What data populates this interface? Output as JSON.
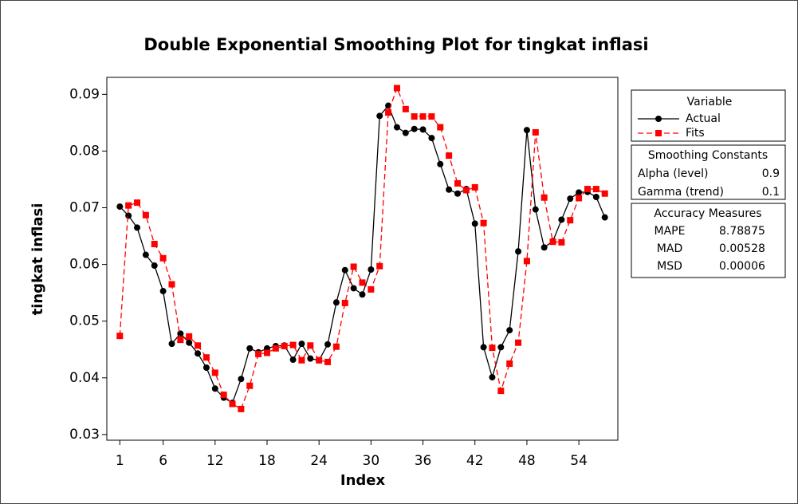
{
  "chart_data": {
    "type": "line",
    "title": "Double Exponential Smoothing Plot for tingkat inflasi",
    "x_label": "Index",
    "y_label": "tingkat inflasi",
    "x": [
      1,
      2,
      3,
      4,
      5,
      6,
      7,
      8,
      9,
      10,
      11,
      12,
      13,
      14,
      15,
      16,
      17,
      18,
      19,
      20,
      21,
      22,
      23,
      24,
      25,
      26,
      27,
      28,
      29,
      30,
      31,
      32,
      33,
      34,
      35,
      36,
      37,
      38,
      39,
      40,
      41,
      42,
      43,
      44,
      45,
      46,
      47,
      48,
      49,
      50,
      51,
      52,
      53,
      54,
      55,
      56,
      57
    ],
    "series": [
      {
        "name": "Actual",
        "color": "#000000",
        "marker": "circle",
        "dashed": false,
        "values": [
          0.0702,
          0.0686,
          0.0665,
          0.0617,
          0.0598,
          0.0553,
          0.046,
          0.0478,
          0.0462,
          0.0443,
          0.0418,
          0.0381,
          0.0365,
          0.0356,
          0.0398,
          0.0452,
          0.0445,
          0.0452,
          0.0456,
          0.0457,
          0.0432,
          0.046,
          0.0434,
          0.0431,
          0.0459,
          0.0533,
          0.059,
          0.0558,
          0.0547,
          0.0591,
          0.0862,
          0.088,
          0.0842,
          0.0832,
          0.0839,
          0.0838,
          0.0823,
          0.0777,
          0.0732,
          0.0725,
          0.0733,
          0.0672,
          0.0454,
          0.0401,
          0.0454,
          0.0484,
          0.0623,
          0.0837,
          0.0697,
          0.063,
          0.0641,
          0.0679,
          0.0716,
          0.0727,
          0.0728,
          0.0719,
          0.0683
        ]
      },
      {
        "name": "Fits",
        "color": "#ff0000",
        "marker": "square",
        "dashed": true,
        "values": [
          0.0474,
          0.0704,
          0.0709,
          0.0687,
          0.0636,
          0.0611,
          0.0565,
          0.0467,
          0.0473,
          0.0457,
          0.0436,
          0.0409,
          0.037,
          0.0354,
          0.0345,
          0.0386,
          0.0442,
          0.0444,
          0.0452,
          0.0456,
          0.0458,
          0.0431,
          0.0457,
          0.0431,
          0.0428,
          0.0455,
          0.0532,
          0.0596,
          0.0568,
          0.0556,
          0.0597,
          0.0868,
          0.0911,
          0.0874,
          0.0861,
          0.0861,
          0.0861,
          0.0842,
          0.0792,
          0.0743,
          0.0731,
          0.0736,
          0.0673,
          0.0453,
          0.0377,
          0.0425,
          0.0462,
          0.0606,
          0.0833,
          0.0718,
          0.064,
          0.0639,
          0.0678,
          0.0717,
          0.0733,
          0.0733,
          0.0725
        ]
      }
    ],
    "xlim": [
      -0.5,
      58.5
    ],
    "xticks": [
      1,
      6,
      12,
      18,
      24,
      30,
      36,
      42,
      48,
      54
    ],
    "ylim": [
      0.029,
      0.093
    ],
    "yticks": [
      0.03,
      0.04,
      0.05,
      0.06,
      0.07,
      0.08,
      0.09
    ],
    "legend_title": "Variable",
    "smoothing_constants": {
      "title": "Smoothing Constants",
      "rows": [
        [
          "Alpha (level)",
          0.9
        ],
        [
          "Gamma (trend)",
          0.1
        ]
      ]
    },
    "accuracy_measures": {
      "title": "Accuracy Measures",
      "rows": [
        [
          "MAPE",
          8.78875
        ],
        [
          "MAD",
          0.00528
        ],
        [
          "MSD",
          6e-05
        ]
      ]
    }
  }
}
